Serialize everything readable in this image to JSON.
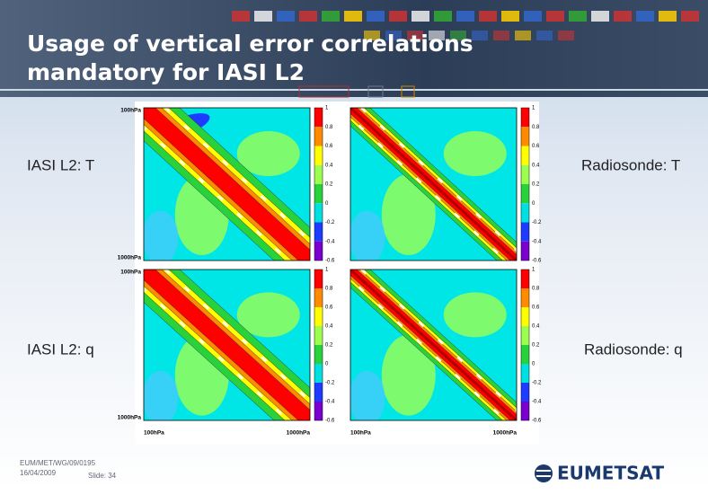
{
  "header": {
    "title_lines": [
      "Usage of vertical error correlations",
      "mandatory for IASI L2"
    ]
  },
  "labels": [
    "IASI L2: T",
    "Radiosonde: T",
    "IASI L2: q",
    "Radiosonde: q"
  ],
  "panels": [
    {
      "y_top": "100hPa",
      "y_bottom": "1000hPa",
      "colorbar": [
        1,
        0.8,
        0.6,
        0.4,
        0.2,
        0,
        -0.2,
        -0.4,
        -0.6
      ]
    },
    {
      "colorbar": [
        1,
        0.8,
        0.6,
        0.4,
        0.2,
        0,
        -0.2,
        -0.4,
        -0.6
      ]
    },
    {
      "y_top": "100hPa",
      "y_bottom": "1000hPa",
      "x_left": "100hPa",
      "x_right": "1000hPa",
      "colorbar": [
        1,
        0.8,
        0.6,
        0.4,
        0.2,
        0,
        -0.2,
        -0.4,
        -0.6
      ]
    },
    {
      "x_left": "100hPa",
      "x_right": "1000hPa",
      "colorbar": [
        1,
        0.8,
        0.6,
        0.4,
        0.2,
        0,
        -0.2,
        -0.4,
        -0.6
      ]
    }
  ],
  "footer": {
    "reference": "EUM/MET/WG/09/0195",
    "date": "16/04/2009",
    "slide": "Slide: 34",
    "logo": "EUMETSAT"
  }
}
